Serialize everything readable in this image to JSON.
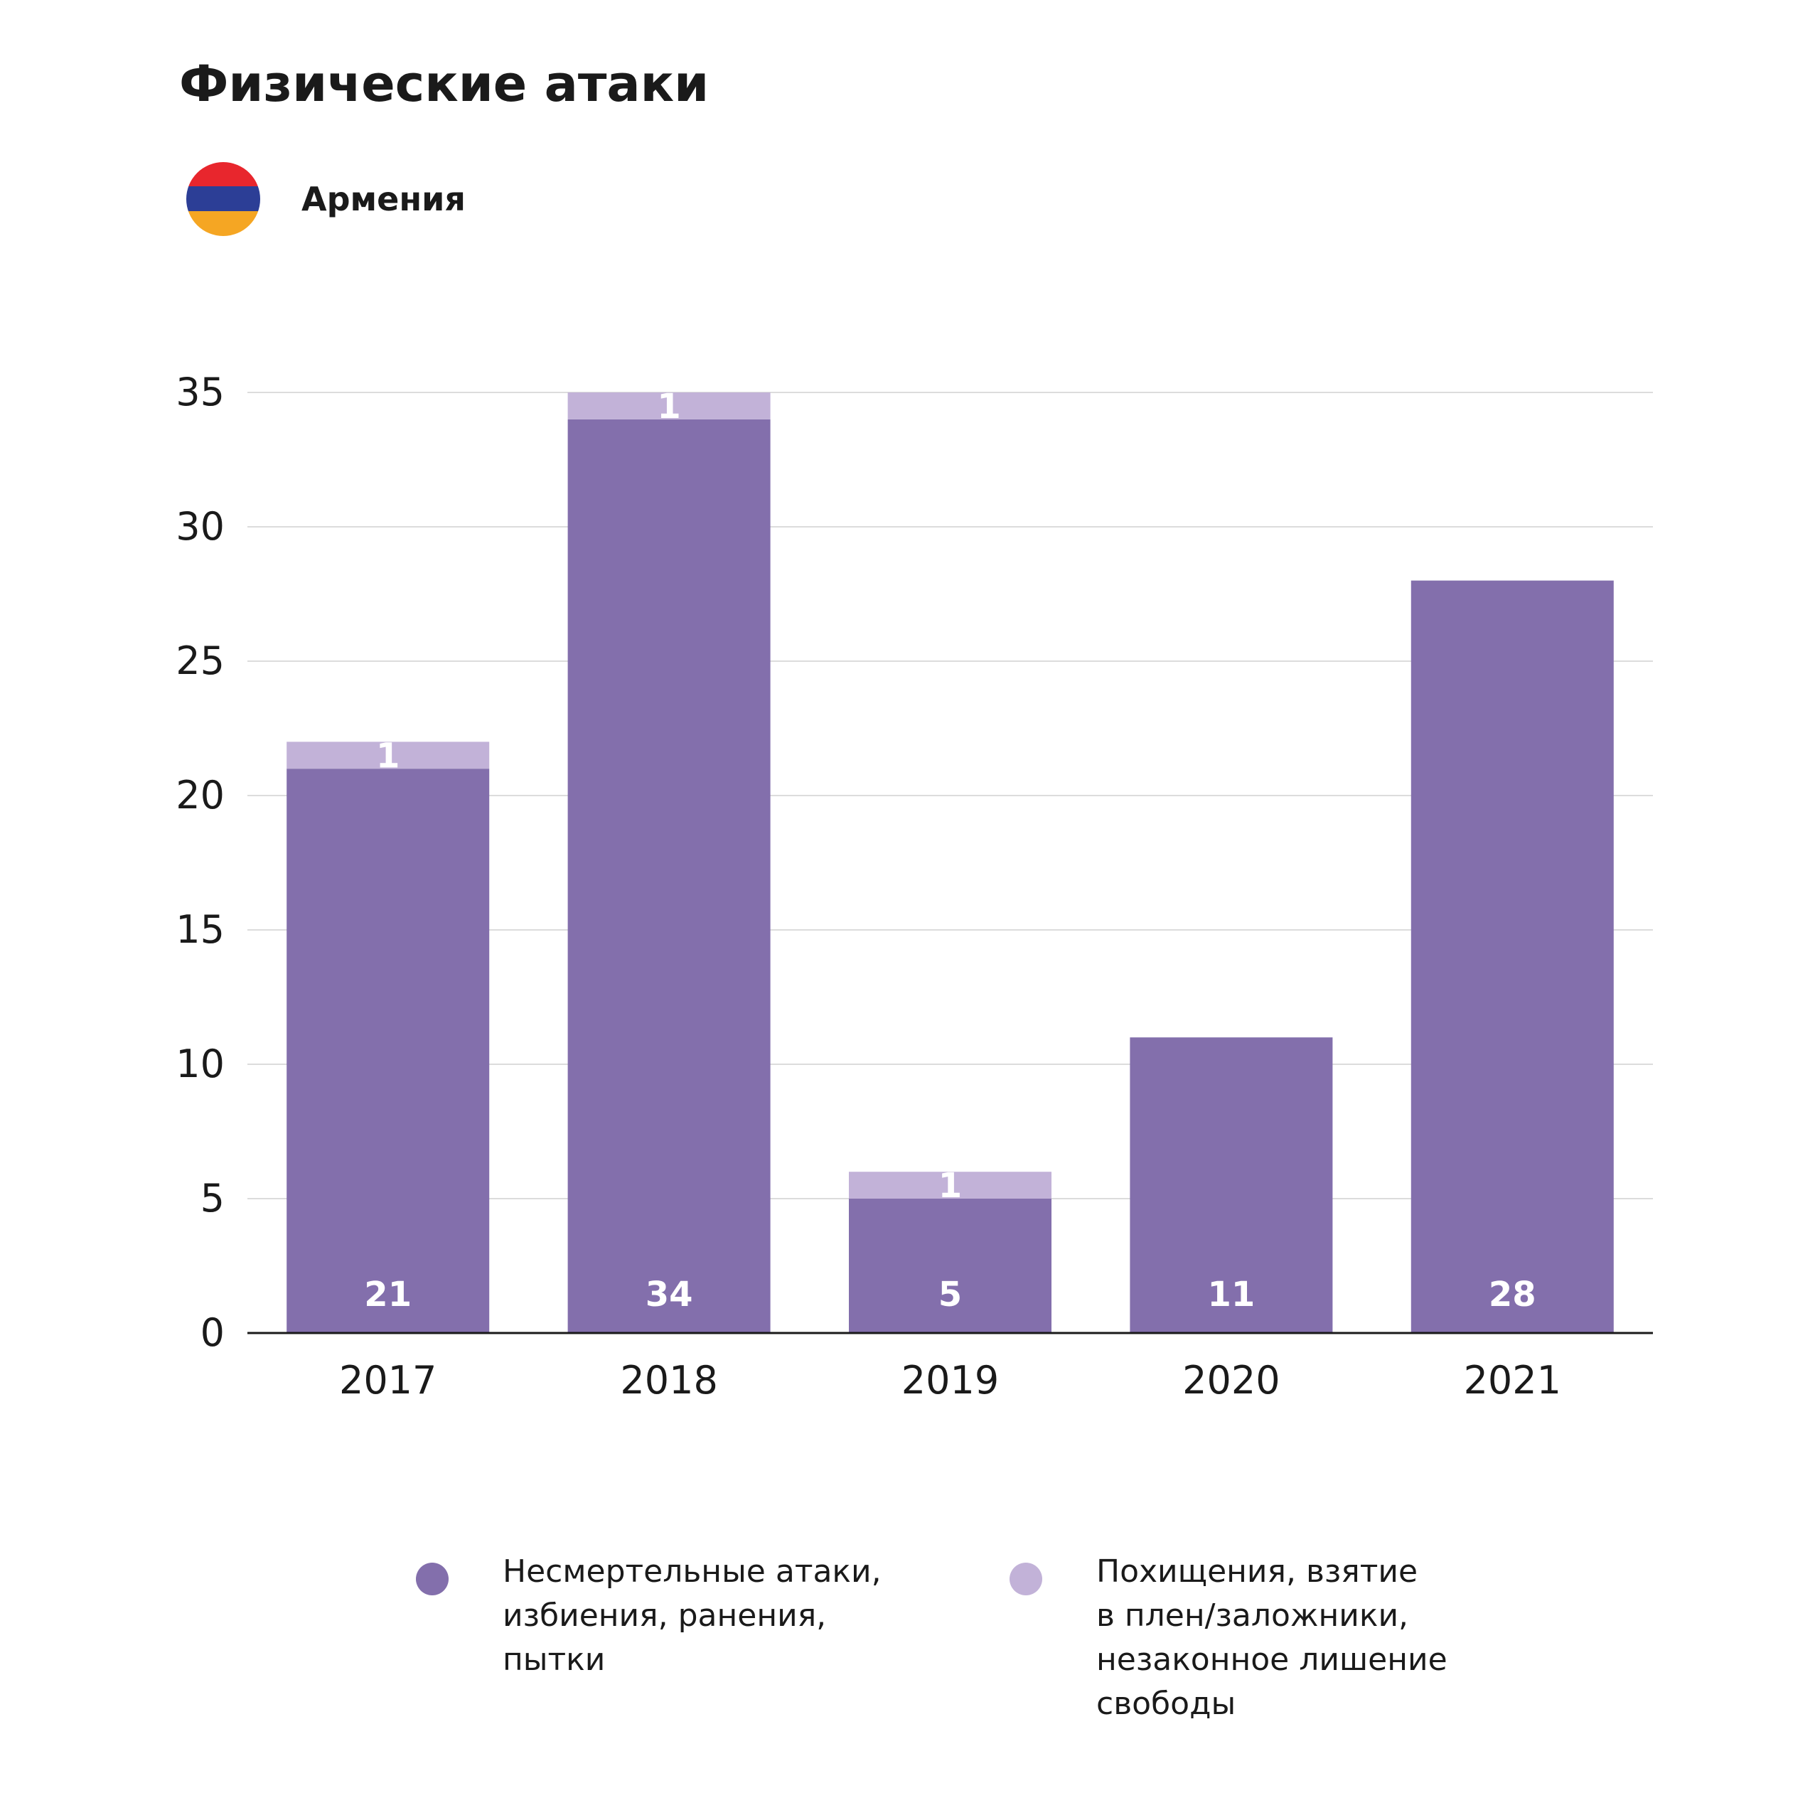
{
  "header": {
    "title": "Физические атаки",
    "country": "Армения",
    "flag_colors": [
      "#e8262d",
      "#2c3e96",
      "#f5a623"
    ]
  },
  "chart_data": {
    "type": "bar",
    "stacked": true,
    "title": "Физические атаки",
    "categories": [
      "2017",
      "2018",
      "2019",
      "2020",
      "2021"
    ],
    "series": [
      {
        "name": "Несмертельные атаки,\nизбиения, ранения,\nпытки",
        "color": "#836fac",
        "values": [
          21,
          34,
          5,
          11,
          28
        ],
        "labels": [
          "21",
          "34",
          "5",
          "11",
          "28"
        ]
      },
      {
        "name": "Похищения, взятие\nв плен/заложники,\nнезаконное лишение\nсвободы",
        "color": "#c2b2d8",
        "values": [
          1,
          1,
          1,
          0,
          0
        ],
        "labels": [
          "1",
          "1",
          "1",
          "",
          ""
        ]
      }
    ],
    "yticks": [
      "0",
      "5",
      "10",
      "15",
      "20",
      "25",
      "30",
      "35"
    ],
    "ylim": [
      0,
      35
    ],
    "grid": true,
    "legend": "bottom"
  }
}
